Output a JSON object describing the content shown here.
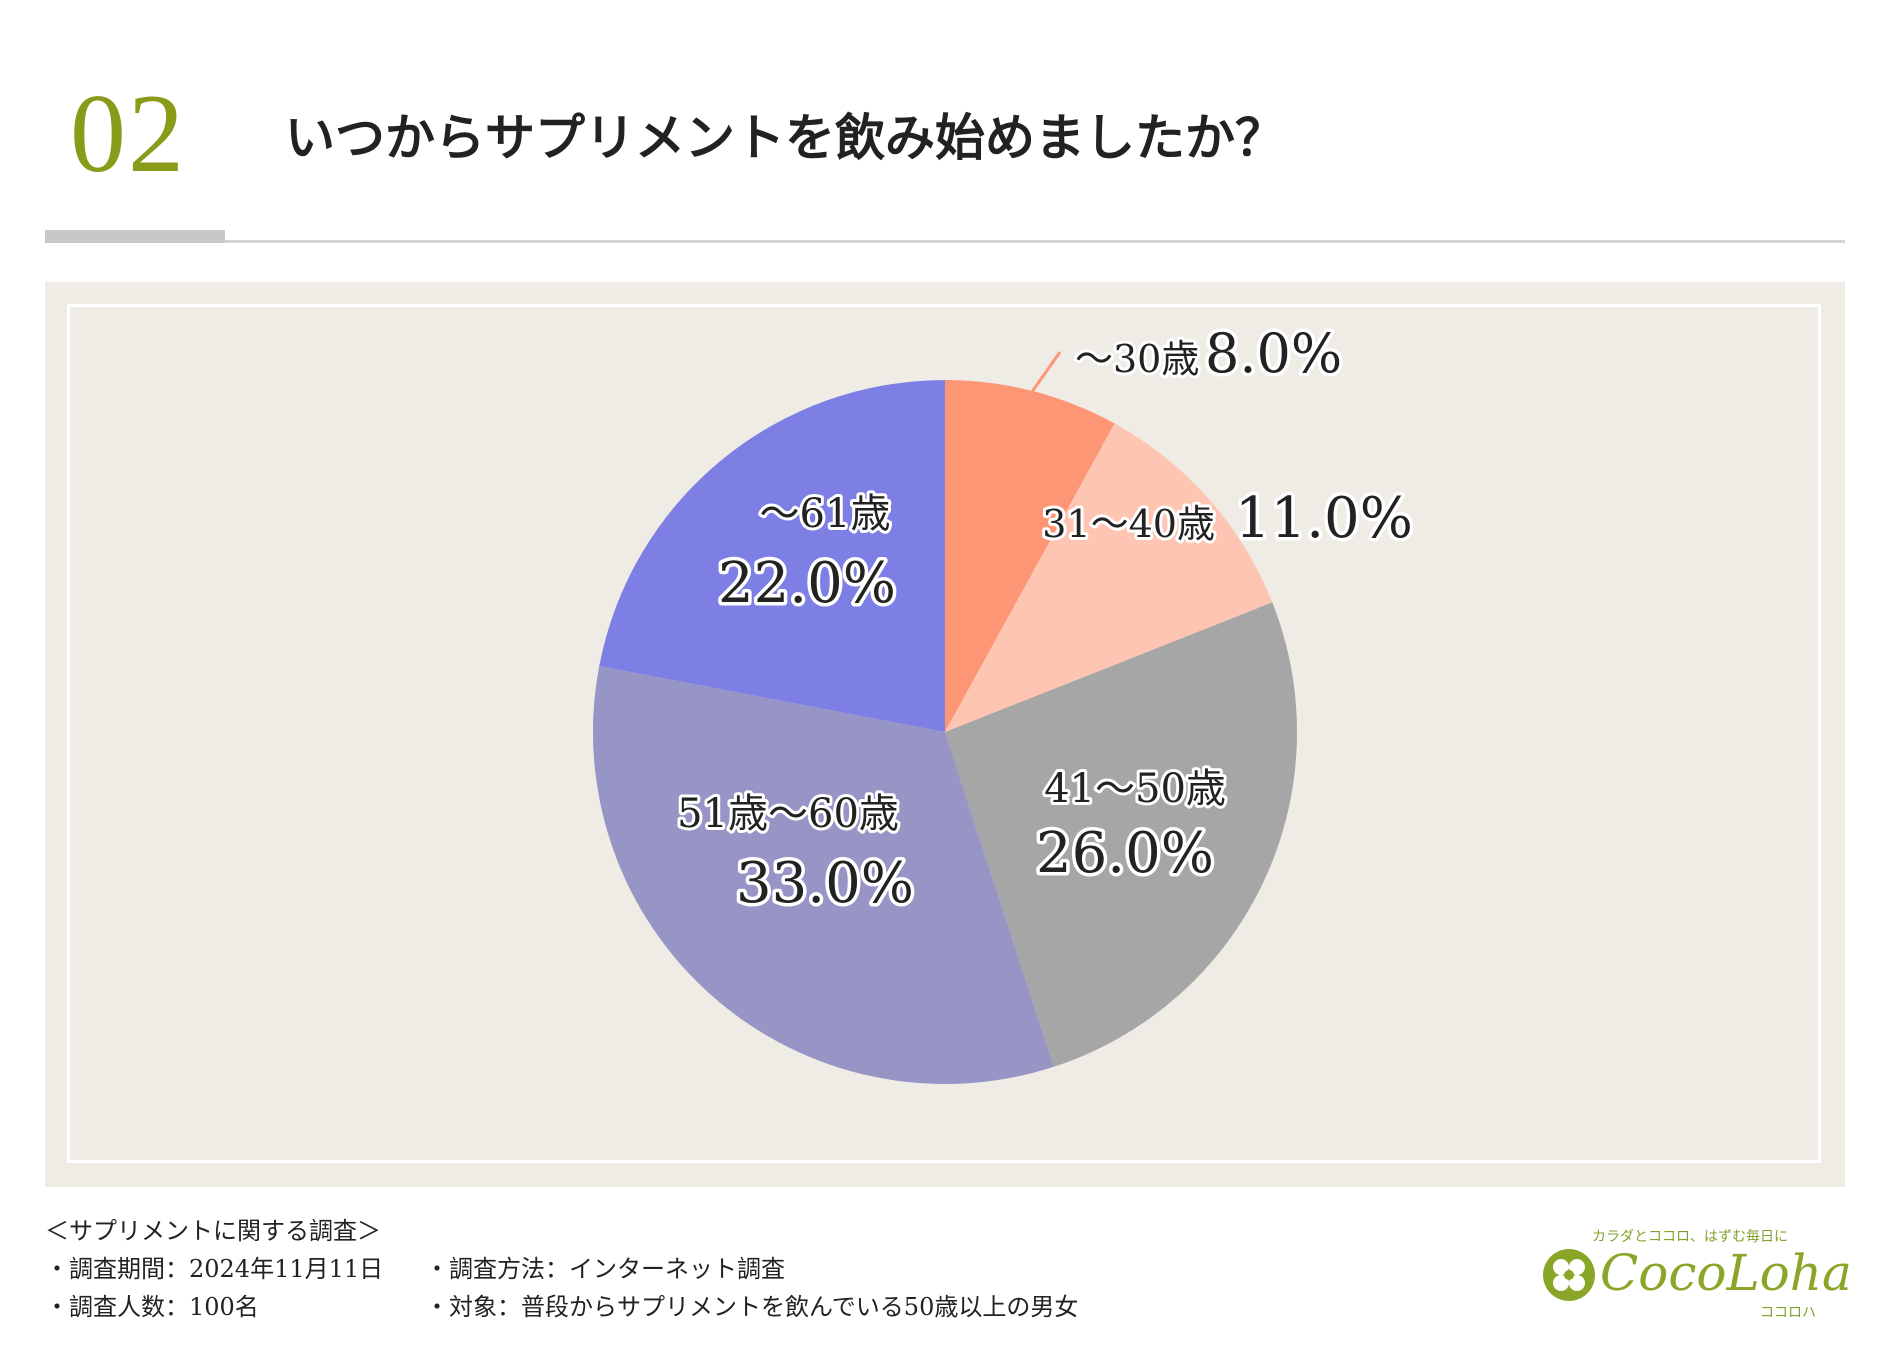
{
  "header": {
    "number": "02",
    "title": "いつからサプリメントを飲み始めましたか？"
  },
  "chart_data": {
    "type": "pie",
    "categories": [
      "～30歳",
      "31～40歳",
      "41～50歳",
      "51歳～60歳",
      "～61歳"
    ],
    "values": [
      8.0,
      11.0,
      26.0,
      33.0,
      22.0
    ],
    "value_labels": [
      "8.0%",
      "11.0%",
      "26.0%",
      "33.0%",
      "22.0%"
    ],
    "colors": [
      "#fd9675",
      "#fec5b3",
      "#a6a6a6",
      "#9794c6",
      "#7d7fe4"
    ],
    "start": "12 o'clock, clockwise"
  },
  "footer": {
    "survey_title": "＜サプリメントに関する調査＞",
    "period": "・調査期間：2024年11月11日",
    "method": "・調査方法：インターネット調査",
    "count": "・調査人数：100名",
    "target": "・対象：普段からサプリメントを飲んでいる50歳以上の男女"
  },
  "logo": {
    "tagline": "カラダとココロ、はずむ毎日に",
    "brand": "CocoLoha",
    "kana": "ココロハ"
  }
}
